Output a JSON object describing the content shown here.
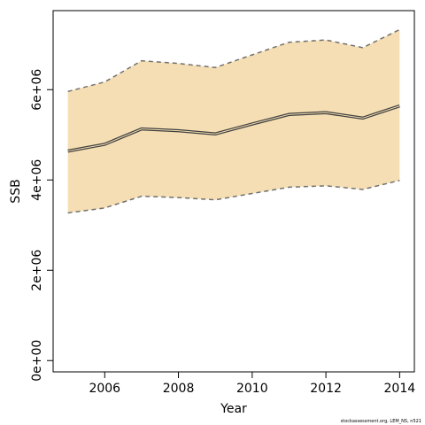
{
  "chart_data": {
    "type": "area",
    "xlabel": "Year",
    "ylabel": "SSB",
    "xlim": [
      2004.6,
      2014.4
    ],
    "ylim": [
      -250000.0,
      7750000.0
    ],
    "x_ticks": [
      2006,
      2008,
      2010,
      2012,
      2014
    ],
    "x_tick_labels": [
      "2006",
      "2008",
      "2010",
      "2012",
      "2014"
    ],
    "y_ticks": [
      0,
      2000000,
      4000000,
      6000000
    ],
    "y_tick_labels": [
      "0e+00",
      "2e+06",
      "4e+06",
      "6e+06"
    ],
    "x": [
      2005,
      2006,
      2007,
      2008,
      2009,
      2010,
      2011,
      2012,
      2013,
      2014
    ],
    "series": [
      {
        "values": [
          4640000,
          4790000,
          5130000,
          5090000,
          5020000,
          5240000,
          5450000,
          5490000,
          5370000,
          5640000
        ]
      },
      {
        "values": [
          3270000,
          3380000,
          3640000,
          3610000,
          3560000,
          3700000,
          3840000,
          3870000,
          3790000,
          3990000
        ]
      },
      {
        "values": [
          5960000,
          6170000,
          6640000,
          6580000,
          6490000,
          6770000,
          7050000,
          7100000,
          6930000,
          7330000
        ]
      }
    ],
    "colors": {
      "band": "#F5DEB3",
      "line": "#404040",
      "bounds": "#707070"
    },
    "credit": "stockassessment.org, LEM_NS, n521"
  }
}
